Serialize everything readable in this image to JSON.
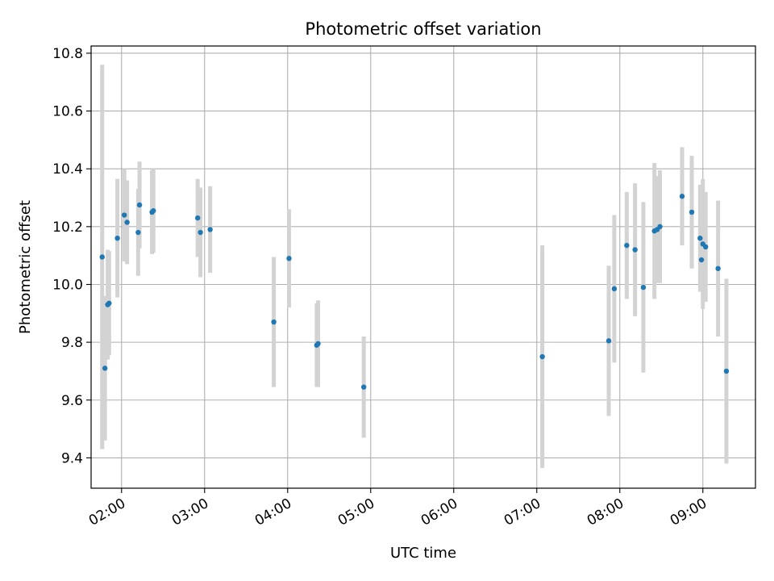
{
  "chart_data": {
    "type": "scatter",
    "title": "Photometric offset variation",
    "xlabel": "UTC time",
    "ylabel": "Photometric offset",
    "xlim": [
      "01:38",
      "09:38"
    ],
    "ylim": [
      9.295,
      10.825
    ],
    "x_ticks": [
      "02:00",
      "03:00",
      "04:00",
      "05:00",
      "06:00",
      "07:00",
      "08:00",
      "09:00"
    ],
    "y_ticks": [
      "9.4",
      "9.6",
      "9.8",
      "10.0",
      "10.2",
      "10.4",
      "10.6",
      "10.8"
    ],
    "grid": true,
    "legend": "none",
    "colors": {
      "point": "#1f77b4",
      "errorbar": "#d3d3d3",
      "grid": "#b0b0b0"
    },
    "series": [
      {
        "points": [
          {
            "time": "01:46",
            "y": 10.095,
            "yerr": 0.665
          },
          {
            "time": "01:48",
            "y": 9.71,
            "yerr": 0.25
          },
          {
            "time": "01:50",
            "y": 9.93,
            "yerr": 0.19
          },
          {
            "time": "01:51",
            "y": 9.935,
            "yerr": 0.18
          },
          {
            "time": "01:57",
            "y": 10.16,
            "yerr": 0.205
          },
          {
            "time": "02:02",
            "y": 10.24,
            "yerr": 0.16
          },
          {
            "time": "02:04",
            "y": 10.215,
            "yerr": 0.145
          },
          {
            "time": "02:12",
            "y": 10.18,
            "yerr": 0.15
          },
          {
            "time": "02:13",
            "y": 10.275,
            "yerr": 0.15
          },
          {
            "time": "02:22",
            "y": 10.25,
            "yerr": 0.145
          },
          {
            "time": "02:23",
            "y": 10.255,
            "yerr": 0.145
          },
          {
            "time": "02:55",
            "y": 10.23,
            "yerr": 0.135
          },
          {
            "time": "02:57",
            "y": 10.18,
            "yerr": 0.155
          },
          {
            "time": "03:04",
            "y": 10.19,
            "yerr": 0.15
          },
          {
            "time": "03:50",
            "y": 9.87,
            "yerr": 0.225
          },
          {
            "time": "04:01",
            "y": 10.09,
            "yerr": 0.17
          },
          {
            "time": "04:21",
            "y": 9.79,
            "yerr": 0.145
          },
          {
            "time": "04:22",
            "y": 9.795,
            "yerr": 0.15
          },
          {
            "time": "04:55",
            "y": 9.645,
            "yerr": 0.175
          },
          {
            "time": "07:04",
            "y": 9.75,
            "yerr": 0.385
          },
          {
            "time": "07:52",
            "y": 9.805,
            "yerr": 0.26
          },
          {
            "time": "07:56",
            "y": 9.985,
            "yerr": 0.255
          },
          {
            "time": "08:05",
            "y": 10.135,
            "yerr": 0.185
          },
          {
            "time": "08:11",
            "y": 10.12,
            "yerr": 0.23
          },
          {
            "time": "08:17",
            "y": 9.99,
            "yerr": 0.295
          },
          {
            "time": "08:25",
            "y": 10.185,
            "yerr": 0.235
          },
          {
            "time": "08:27",
            "y": 10.19,
            "yerr": 0.185
          },
          {
            "time": "08:29",
            "y": 10.2,
            "yerr": 0.195
          },
          {
            "time": "08:45",
            "y": 10.305,
            "yerr": 0.17
          },
          {
            "time": "08:52",
            "y": 10.25,
            "yerr": 0.195
          },
          {
            "time": "08:58",
            "y": 10.16,
            "yerr": 0.185
          },
          {
            "time": "08:59",
            "y": 10.085,
            "yerr": 0.11
          },
          {
            "time": "09:00",
            "y": 10.14,
            "yerr": 0.225
          },
          {
            "time": "09:02",
            "y": 10.13,
            "yerr": 0.19
          },
          {
            "time": "09:11",
            "y": 10.055,
            "yerr": 0.235
          },
          {
            "time": "09:17",
            "y": 9.7,
            "yerr": 0.32
          }
        ]
      }
    ]
  }
}
